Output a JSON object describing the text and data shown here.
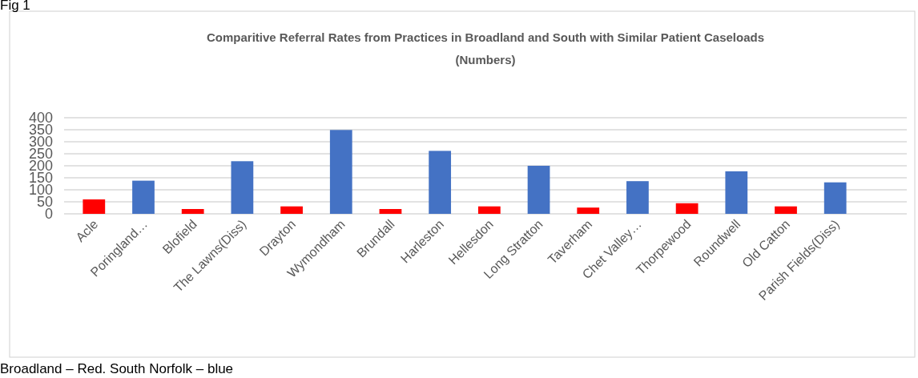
{
  "chart_data": {
    "type": "bar",
    "title": "Comparitive Referral Rates from Practices in Broadland and South with Similar Patient Caseloads",
    "subtitle": "(Numbers)",
    "categories": [
      "Acle",
      "Poringland…",
      "Blofield",
      "The Lawns(Diss)",
      "Drayton",
      "Wymondham",
      "Brundall",
      "Harleston",
      "Hellesdon",
      "Long Stratton",
      "Taverham",
      "Chet Valley…",
      "Thorpewood",
      "Roundwell",
      "Old Catton",
      "Parish Fields(Diss)"
    ],
    "values": [
      60,
      138,
      20,
      219,
      31,
      349,
      20,
      262,
      31,
      200,
      26,
      136,
      44,
      177,
      31,
      131
    ],
    "colors": [
      "#ff0000",
      "#4472c4",
      "#ff0000",
      "#4472c4",
      "#ff0000",
      "#4472c4",
      "#ff0000",
      "#4472c4",
      "#ff0000",
      "#4472c4",
      "#ff0000",
      "#4472c4",
      "#ff0000",
      "#4472c4",
      "#ff0000",
      "#4472c4"
    ],
    "ylim": [
      0,
      400
    ],
    "yticks": [
      0,
      50,
      100,
      150,
      200,
      250,
      300,
      350,
      400
    ],
    "grid": "y",
    "annotations": [
      "Fig 1",
      "Broadland – Red. South Norfolk – blue"
    ]
  }
}
